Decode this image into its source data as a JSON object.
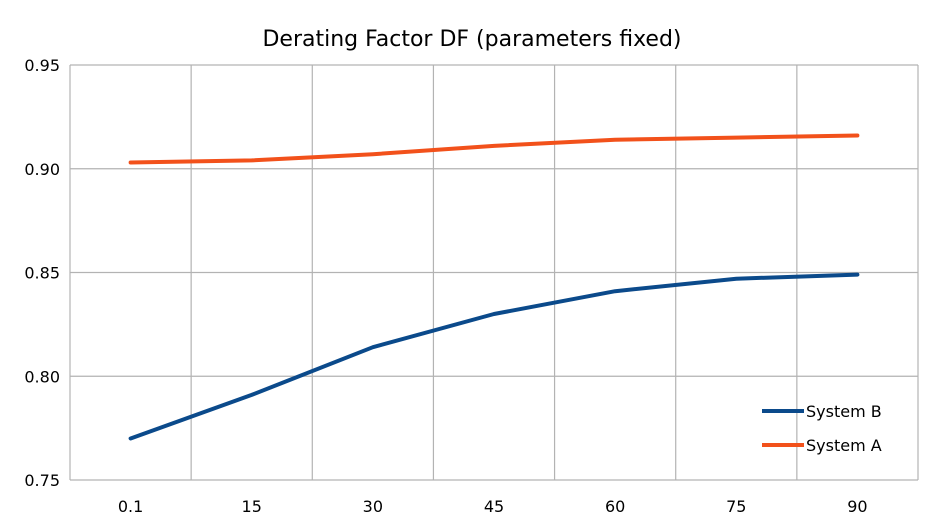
{
  "chart_data": {
    "type": "line",
    "title": "Derating Factor DF (parameters fixed)",
    "xlabel": "",
    "ylabel": "",
    "categories": [
      "0.1",
      "15",
      "30",
      "45",
      "60",
      "75",
      "90"
    ],
    "ylim": [
      0.75,
      0.95
    ],
    "yticks": [
      "0.75",
      "0.80",
      "0.85",
      "0.90",
      "0.95"
    ],
    "grid": true,
    "legend_position": "bottom-right",
    "series": [
      {
        "name": "System B",
        "color": "#0b4a8b",
        "values": [
          0.77,
          0.791,
          0.814,
          0.83,
          0.841,
          0.847,
          0.849
        ]
      },
      {
        "name": "System A",
        "color": "#f2511b",
        "values": [
          0.903,
          0.904,
          0.907,
          0.911,
          0.914,
          0.915,
          0.916
        ]
      }
    ]
  }
}
